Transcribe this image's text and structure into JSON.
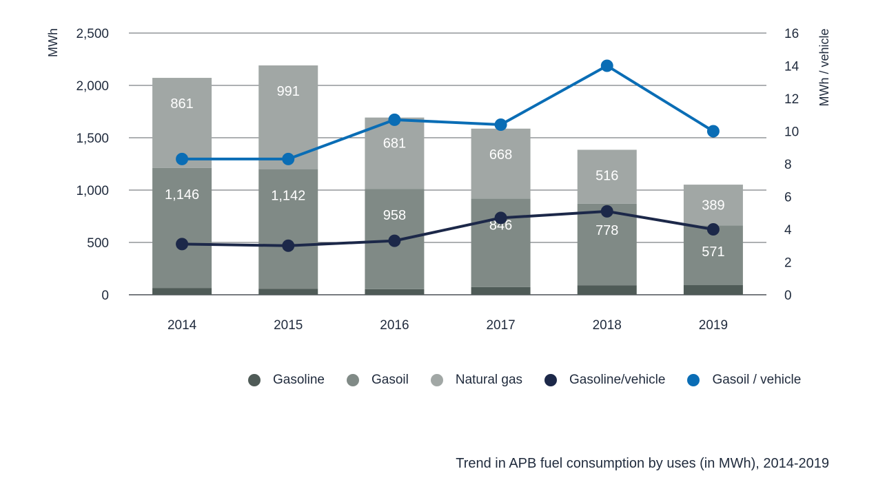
{
  "chart_data": {
    "type": "bar",
    "categories": [
      "2014",
      "2015",
      "2016",
      "2017",
      "2018",
      "2019"
    ],
    "series": [
      {
        "name": "Gasoline",
        "kind": "bar",
        "axis": "left",
        "color": "#4f5b57",
        "values": [
          65,
          58,
          54,
          73,
          91,
          92
        ]
      },
      {
        "name": "Gasoil",
        "kind": "bar",
        "axis": "left",
        "color": "#808a86",
        "values": [
          1146,
          1142,
          958,
          846,
          778,
          571
        ]
      },
      {
        "name": "Natural gas",
        "kind": "bar",
        "axis": "left",
        "color": "#a1a7a5",
        "values": [
          861,
          991,
          681,
          668,
          516,
          389
        ]
      },
      {
        "name": "Gasoline/vehicle",
        "kind": "line",
        "axis": "right",
        "color": "#1c2849",
        "values": [
          3.1,
          3.0,
          3.3,
          4.7,
          5.1,
          4.0
        ]
      },
      {
        "name": "Gasoil / vehicle",
        "kind": "line",
        "axis": "right",
        "color": "#0a6db5",
        "values": [
          8.3,
          8.3,
          10.7,
          10.4,
          14.0,
          10.0
        ]
      }
    ],
    "title": "Trend in APB fuel consumption by uses (in MWh), 2014-2019",
    "ylabel": "MWh",
    "y2label": "MWh / vehicle",
    "ylim": [
      0,
      2500
    ],
    "y2lim": [
      0,
      16
    ],
    "yticks": [
      "0",
      "500",
      "1,000",
      "1,500",
      "2,000",
      "2,500"
    ],
    "y2ticks": [
      "0",
      "2",
      "4",
      "6",
      "8",
      "10",
      "12",
      "14",
      "16"
    ],
    "stacked": true,
    "grid": true,
    "legend_position": "bottom"
  },
  "legend": [
    {
      "label": "Gasoline",
      "color": "#4f5b57"
    },
    {
      "label": "Gasoil",
      "color": "#808a86"
    },
    {
      "label": "Natural gas",
      "color": "#a1a7a5"
    },
    {
      "label": "Gasoline/vehicle",
      "color": "#1c2849"
    },
    {
      "label": "Gasoil / vehicle",
      "color": "#0a6db5"
    }
  ],
  "caption": "Trend in APB fuel consumption by uses (in MWh), 2014-2019"
}
